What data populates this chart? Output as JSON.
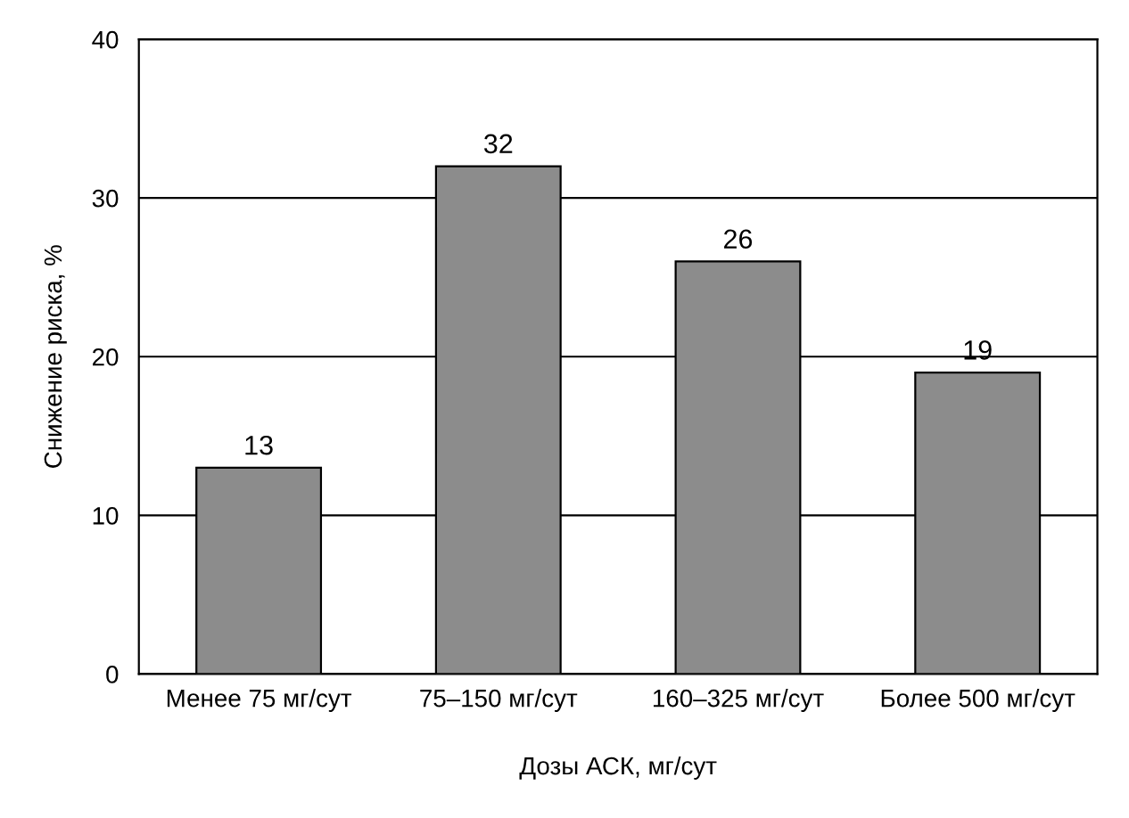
{
  "chart_data": {
    "type": "bar",
    "xlabel": "Дозы АСК, мг/сут",
    "ylabel": "Снижение риска, %",
    "categories": [
      "Менее 75 мг/сут",
      "75–150 мг/сут",
      "160–325 мг/сут",
      "Более 500 мг/сут"
    ],
    "values": [
      13,
      32,
      26,
      19
    ],
    "color": "#8c8c8c",
    "ylim": [
      0,
      40
    ],
    "yticks": [
      0,
      10,
      20,
      30,
      40
    ],
    "grid": "y",
    "data_labels": true
  }
}
